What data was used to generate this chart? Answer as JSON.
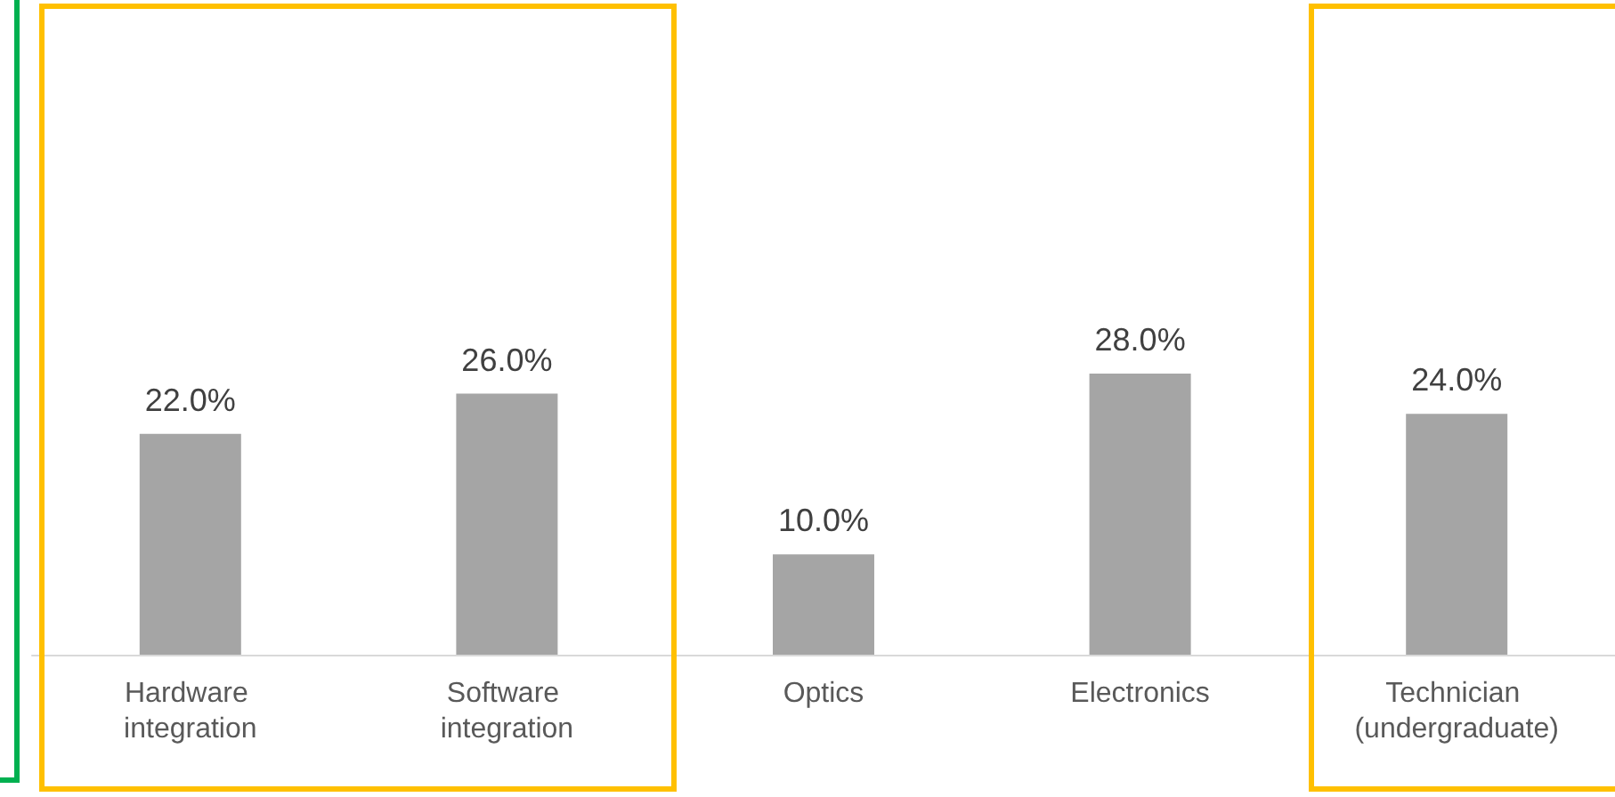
{
  "chart_data": {
    "type": "bar",
    "categories": [
      "Hardware integration",
      "Software integration",
      "Optics",
      "Electronics",
      "Technician (undergraduate)"
    ],
    "values": [
      22,
      26,
      10,
      28,
      24
    ],
    "value_labels": [
      "22.0%",
      "26.0%",
      "10.0%",
      "28.0%",
      "24.0%"
    ],
    "color": "#a5a5a5"
  }
}
